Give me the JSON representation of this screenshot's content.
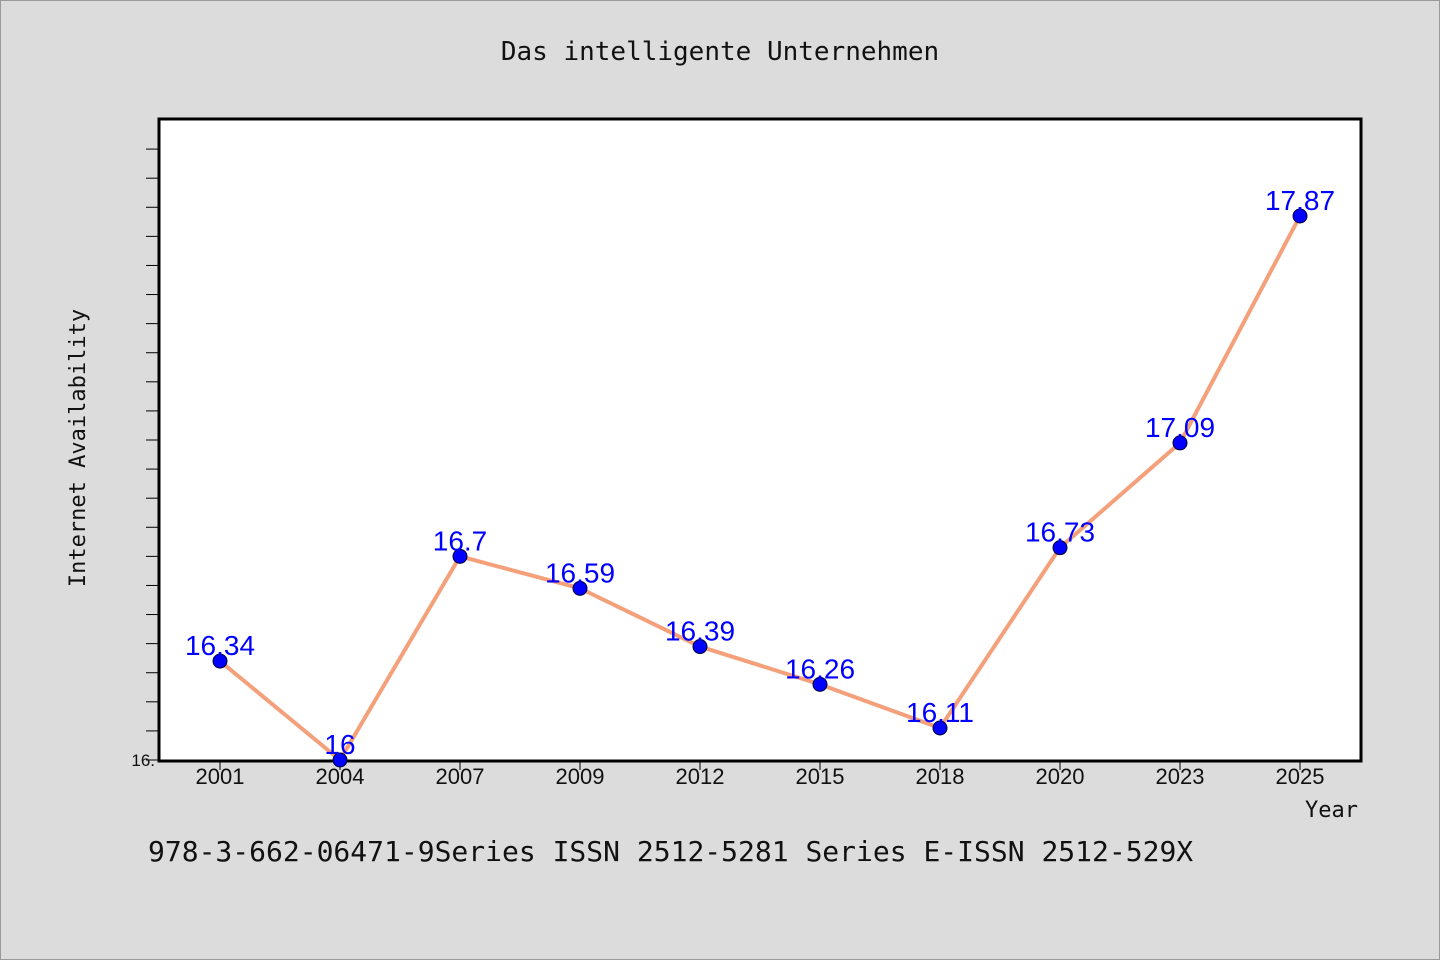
{
  "chart_data": {
    "type": "line",
    "title": "Das intelligente Unternehmen",
    "xlabel": "Year",
    "ylabel": "Internet Availability",
    "categories": [
      "2001",
      "2004",
      "2007",
      "2009",
      "2012",
      "2015",
      "2018",
      "2020",
      "2023",
      "2025"
    ],
    "values": [
      16.34,
      16,
      16.7,
      16.59,
      16.39,
      16.26,
      16.11,
      16.73,
      17.09,
      17.87
    ],
    "data_labels": [
      "16.34",
      "16",
      "16.7",
      "16.59",
      "16.39",
      "16.26",
      "16.11",
      "16.73",
      "17.09",
      "17.87"
    ],
    "yticks_labels": [
      "16."
    ],
    "ylim": [
      16,
      18.2
    ],
    "grid": false,
    "line_color": "#f4a07a",
    "marker_color": "#0000ff",
    "label_color": "#0000ff",
    "plot_background": "#ffffff"
  },
  "footer": {
    "text": "978-3-662-06471-9Series ISSN 2512-5281 Series E-ISSN 2512-529X"
  }
}
